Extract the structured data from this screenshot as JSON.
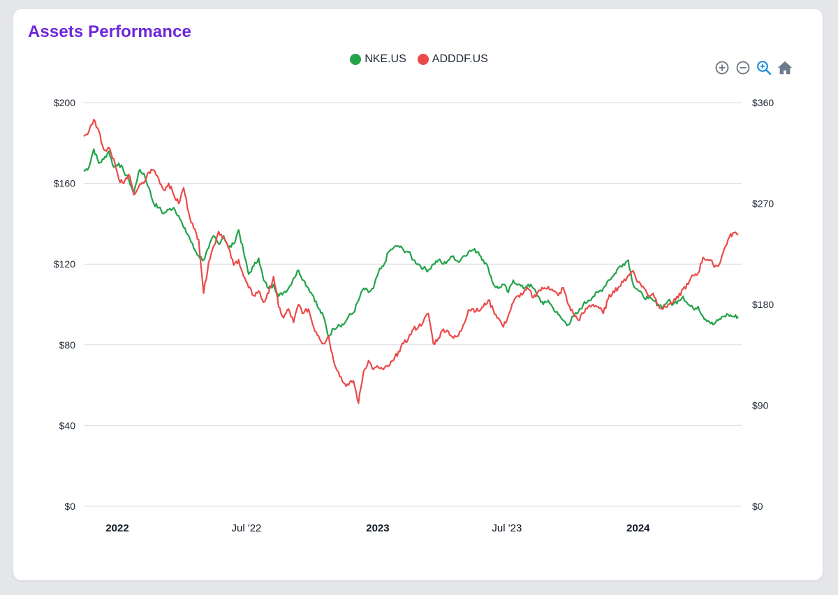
{
  "header": {
    "title": "Assets Performance"
  },
  "toolbar": [
    {
      "name": "zoom-in-icon",
      "label": "Zoom in"
    },
    {
      "name": "zoom-out-icon",
      "label": "Zoom out"
    },
    {
      "name": "magnifier-icon",
      "label": "Selection zoom"
    },
    {
      "name": "home-icon",
      "label": "Reset zoom"
    }
  ],
  "colors": {
    "nke": "#22a34a",
    "adddf": "#ea4a4a",
    "title": "#6d28d9",
    "grid": "#d9dbe0"
  },
  "chart_data": {
    "type": "line",
    "title": "Assets Performance",
    "legend_position": "top-center",
    "grid": true,
    "x_range": [
      "2021-11-15",
      "2024-05-25"
    ],
    "x_ticks": [
      {
        "date": "2022-01-01",
        "label": "2022",
        "bold": true
      },
      {
        "date": "2022-07-01",
        "label": "Jul '22",
        "bold": false
      },
      {
        "date": "2023-01-01",
        "label": "2023",
        "bold": true
      },
      {
        "date": "2023-07-01",
        "label": "Jul '23",
        "bold": false
      },
      {
        "date": "2024-01-01",
        "label": "2024",
        "bold": true
      }
    ],
    "y_left": {
      "min": 0,
      "max": 200,
      "ticks": [
        0,
        40,
        80,
        120,
        160,
        200
      ],
      "labels": [
        "$0",
        "$40",
        "$80",
        "$120",
        "$160",
        "$200"
      ]
    },
    "y_right": {
      "min": 0,
      "max": 360,
      "ticks": [
        0,
        90,
        180,
        270,
        360
      ],
      "labels": [
        "$0",
        "$90",
        "$180",
        "$270",
        "$360"
      ]
    },
    "series": [
      {
        "name": "NKE.US",
        "axis": "left",
        "color": "#22a34a",
        "points": [
          [
            "2021-11-15",
            166
          ],
          [
            "2021-11-22",
            168
          ],
          [
            "2021-11-29",
            177
          ],
          [
            "2021-12-06",
            170
          ],
          [
            "2021-12-13",
            172
          ],
          [
            "2021-12-20",
            176
          ],
          [
            "2021-12-27",
            168
          ],
          [
            "2022-01-03",
            170
          ],
          [
            "2022-01-10",
            166
          ],
          [
            "2022-01-17",
            162
          ],
          [
            "2022-01-24",
            155
          ],
          [
            "2022-01-31",
            166
          ],
          [
            "2022-02-07",
            165
          ],
          [
            "2022-02-14",
            158
          ],
          [
            "2022-02-21",
            150
          ],
          [
            "2022-02-28",
            148
          ],
          [
            "2022-03-07",
            145
          ],
          [
            "2022-03-14",
            147
          ],
          [
            "2022-03-21",
            148
          ],
          [
            "2022-03-28",
            144
          ],
          [
            "2022-04-04",
            138
          ],
          [
            "2022-04-11",
            134
          ],
          [
            "2022-04-18",
            128
          ],
          [
            "2022-04-25",
            124
          ],
          [
            "2022-05-02",
            122
          ],
          [
            "2022-05-09",
            128
          ],
          [
            "2022-05-16",
            134
          ],
          [
            "2022-05-23",
            130
          ],
          [
            "2022-05-30",
            134
          ],
          [
            "2022-06-06",
            128
          ],
          [
            "2022-06-13",
            130
          ],
          [
            "2022-06-20",
            137
          ],
          [
            "2022-06-27",
            126
          ],
          [
            "2022-07-04",
            115
          ],
          [
            "2022-07-11",
            119
          ],
          [
            "2022-07-18",
            123
          ],
          [
            "2022-07-25",
            112
          ],
          [
            "2022-08-01",
            108
          ],
          [
            "2022-08-08",
            110
          ],
          [
            "2022-08-15",
            104
          ],
          [
            "2022-08-22",
            106
          ],
          [
            "2022-08-29",
            108
          ],
          [
            "2022-09-05",
            113
          ],
          [
            "2022-09-12",
            117
          ],
          [
            "2022-09-19",
            112
          ],
          [
            "2022-09-26",
            108
          ],
          [
            "2022-10-03",
            104
          ],
          [
            "2022-10-10",
            98
          ],
          [
            "2022-10-17",
            94
          ],
          [
            "2022-10-24",
            84
          ],
          [
            "2022-10-31",
            88
          ],
          [
            "2022-11-07",
            90
          ],
          [
            "2022-11-14",
            90
          ],
          [
            "2022-11-21",
            94
          ],
          [
            "2022-11-28",
            96
          ],
          [
            "2022-12-05",
            102
          ],
          [
            "2022-12-12",
            108
          ],
          [
            "2022-12-19",
            106
          ],
          [
            "2022-12-26",
            108
          ],
          [
            "2023-01-02",
            116
          ],
          [
            "2023-01-09",
            119
          ],
          [
            "2023-01-16",
            126
          ],
          [
            "2023-01-23",
            128
          ],
          [
            "2023-01-30",
            129
          ],
          [
            "2023-02-06",
            127
          ],
          [
            "2023-02-13",
            126
          ],
          [
            "2023-02-20",
            122
          ],
          [
            "2023-02-27",
            120
          ],
          [
            "2023-03-06",
            118
          ],
          [
            "2023-03-13",
            117
          ],
          [
            "2023-03-20",
            120
          ],
          [
            "2023-03-27",
            122
          ],
          [
            "2023-04-03",
            120
          ],
          [
            "2023-04-10",
            122
          ],
          [
            "2023-04-17",
            124
          ],
          [
            "2023-04-24",
            121
          ],
          [
            "2023-05-01",
            124
          ],
          [
            "2023-05-08",
            126
          ],
          [
            "2023-05-15",
            127
          ],
          [
            "2023-05-22",
            126
          ],
          [
            "2023-05-29",
            122
          ],
          [
            "2023-06-05",
            118
          ],
          [
            "2023-06-12",
            110
          ],
          [
            "2023-06-19",
            108
          ],
          [
            "2023-06-26",
            110
          ],
          [
            "2023-07-03",
            106
          ],
          [
            "2023-07-10",
            112
          ],
          [
            "2023-07-17",
            110
          ],
          [
            "2023-07-24",
            108
          ],
          [
            "2023-07-31",
            110
          ],
          [
            "2023-08-07",
            108
          ],
          [
            "2023-08-14",
            104
          ],
          [
            "2023-08-21",
            100
          ],
          [
            "2023-08-28",
            102
          ],
          [
            "2023-09-04",
            98
          ],
          [
            "2023-09-11",
            95
          ],
          [
            "2023-09-18",
            92
          ],
          [
            "2023-09-25",
            90
          ],
          [
            "2023-10-02",
            94
          ],
          [
            "2023-10-09",
            96
          ],
          [
            "2023-10-16",
            100
          ],
          [
            "2023-10-23",
            102
          ],
          [
            "2023-10-30",
            104
          ],
          [
            "2023-11-06",
            106
          ],
          [
            "2023-11-13",
            108
          ],
          [
            "2023-11-20",
            112
          ],
          [
            "2023-11-27",
            114
          ],
          [
            "2023-12-04",
            118
          ],
          [
            "2023-12-11",
            120
          ],
          [
            "2023-12-18",
            122
          ],
          [
            "2023-12-25",
            110
          ],
          [
            "2024-01-01",
            107
          ],
          [
            "2024-01-08",
            104
          ],
          [
            "2024-01-15",
            103
          ],
          [
            "2024-01-22",
            102
          ],
          [
            "2024-01-29",
            100
          ],
          [
            "2024-02-05",
            99
          ],
          [
            "2024-02-12",
            102
          ],
          [
            "2024-02-19",
            100
          ],
          [
            "2024-02-26",
            102
          ],
          [
            "2024-03-04",
            104
          ],
          [
            "2024-03-11",
            100
          ],
          [
            "2024-03-18",
            98
          ],
          [
            "2024-03-25",
            99
          ],
          [
            "2024-04-01",
            94
          ],
          [
            "2024-04-08",
            92
          ],
          [
            "2024-04-15",
            90
          ],
          [
            "2024-04-22",
            92
          ],
          [
            "2024-04-29",
            94
          ],
          [
            "2024-05-06",
            95
          ],
          [
            "2024-05-13",
            94
          ],
          [
            "2024-05-20",
            94
          ]
        ]
      },
      {
        "name": "ADDDF.US",
        "axis": "right",
        "color": "#ea4a4a",
        "points": [
          [
            "2021-11-15",
            330
          ],
          [
            "2021-11-22",
            334
          ],
          [
            "2021-11-29",
            345
          ],
          [
            "2021-12-06",
            335
          ],
          [
            "2021-12-13",
            318
          ],
          [
            "2021-12-20",
            320
          ],
          [
            "2021-12-27",
            310
          ],
          [
            "2022-01-03",
            292
          ],
          [
            "2022-01-10",
            288
          ],
          [
            "2022-01-17",
            296
          ],
          [
            "2022-01-24",
            278
          ],
          [
            "2022-01-31",
            285
          ],
          [
            "2022-02-07",
            288
          ],
          [
            "2022-02-14",
            298
          ],
          [
            "2022-02-21",
            300
          ],
          [
            "2022-02-28",
            292
          ],
          [
            "2022-03-07",
            282
          ],
          [
            "2022-03-14",
            288
          ],
          [
            "2022-03-21",
            278
          ],
          [
            "2022-03-28",
            270
          ],
          [
            "2022-04-04",
            284
          ],
          [
            "2022-04-11",
            262
          ],
          [
            "2022-04-18",
            248
          ],
          [
            "2022-04-25",
            238
          ],
          [
            "2022-05-02",
            190
          ],
          [
            "2022-05-09",
            218
          ],
          [
            "2022-05-16",
            232
          ],
          [
            "2022-05-23",
            245
          ],
          [
            "2022-05-30",
            240
          ],
          [
            "2022-06-06",
            230
          ],
          [
            "2022-06-13",
            215
          ],
          [
            "2022-06-20",
            220
          ],
          [
            "2022-06-27",
            205
          ],
          [
            "2022-07-04",
            195
          ],
          [
            "2022-07-11",
            188
          ],
          [
            "2022-07-18",
            192
          ],
          [
            "2022-07-25",
            182
          ],
          [
            "2022-08-01",
            190
          ],
          [
            "2022-08-08",
            205
          ],
          [
            "2022-08-15",
            178
          ],
          [
            "2022-08-22",
            168
          ],
          [
            "2022-08-29",
            176
          ],
          [
            "2022-09-05",
            164
          ],
          [
            "2022-09-12",
            180
          ],
          [
            "2022-09-19",
            172
          ],
          [
            "2022-09-26",
            176
          ],
          [
            "2022-10-03",
            160
          ],
          [
            "2022-10-10",
            152
          ],
          [
            "2022-10-17",
            145
          ],
          [
            "2022-10-24",
            152
          ],
          [
            "2022-10-31",
            130
          ],
          [
            "2022-11-07",
            120
          ],
          [
            "2022-11-14",
            110
          ],
          [
            "2022-11-21",
            108
          ],
          [
            "2022-11-28",
            112
          ],
          [
            "2022-12-05",
            92
          ],
          [
            "2022-12-12",
            120
          ],
          [
            "2022-12-19",
            130
          ],
          [
            "2022-12-26",
            122
          ],
          [
            "2023-01-02",
            124
          ],
          [
            "2023-01-09",
            122
          ],
          [
            "2023-01-16",
            125
          ],
          [
            "2023-01-23",
            130
          ],
          [
            "2023-01-30",
            138
          ],
          [
            "2023-02-06",
            145
          ],
          [
            "2023-02-13",
            150
          ],
          [
            "2023-02-20",
            158
          ],
          [
            "2023-02-27",
            160
          ],
          [
            "2023-03-06",
            165
          ],
          [
            "2023-03-13",
            172
          ],
          [
            "2023-03-20",
            145
          ],
          [
            "2023-03-27",
            150
          ],
          [
            "2023-04-03",
            158
          ],
          [
            "2023-04-10",
            156
          ],
          [
            "2023-04-17",
            150
          ],
          [
            "2023-04-24",
            152
          ],
          [
            "2023-05-01",
            162
          ],
          [
            "2023-05-08",
            175
          ],
          [
            "2023-05-15",
            176
          ],
          [
            "2023-05-22",
            174
          ],
          [
            "2023-05-29",
            178
          ],
          [
            "2023-06-05",
            184
          ],
          [
            "2023-06-12",
            175
          ],
          [
            "2023-06-19",
            168
          ],
          [
            "2023-06-26",
            160
          ],
          [
            "2023-07-03",
            170
          ],
          [
            "2023-07-10",
            182
          ],
          [
            "2023-07-17",
            188
          ],
          [
            "2023-07-24",
            190
          ],
          [
            "2023-07-31",
            194
          ],
          [
            "2023-08-07",
            186
          ],
          [
            "2023-08-14",
            192
          ],
          [
            "2023-08-21",
            194
          ],
          [
            "2023-08-28",
            196
          ],
          [
            "2023-09-04",
            192
          ],
          [
            "2023-09-11",
            188
          ],
          [
            "2023-09-18",
            195
          ],
          [
            "2023-09-25",
            180
          ],
          [
            "2023-10-02",
            172
          ],
          [
            "2023-10-09",
            166
          ],
          [
            "2023-10-16",
            172
          ],
          [
            "2023-10-23",
            178
          ],
          [
            "2023-10-30",
            180
          ],
          [
            "2023-11-06",
            178
          ],
          [
            "2023-11-13",
            172
          ],
          [
            "2023-11-20",
            185
          ],
          [
            "2023-11-27",
            192
          ],
          [
            "2023-12-04",
            195
          ],
          [
            "2023-12-11",
            200
          ],
          [
            "2023-12-18",
            206
          ],
          [
            "2023-12-25",
            210
          ],
          [
            "2024-01-01",
            200
          ],
          [
            "2024-01-08",
            196
          ],
          [
            "2024-01-15",
            188
          ],
          [
            "2024-01-22",
            190
          ],
          [
            "2024-01-29",
            180
          ],
          [
            "2024-02-05",
            176
          ],
          [
            "2024-02-12",
            180
          ],
          [
            "2024-02-19",
            182
          ],
          [
            "2024-02-26",
            186
          ],
          [
            "2024-03-04",
            194
          ],
          [
            "2024-03-11",
            198
          ],
          [
            "2024-03-18",
            206
          ],
          [
            "2024-03-25",
            208
          ],
          [
            "2024-04-01",
            222
          ],
          [
            "2024-04-08",
            220
          ],
          [
            "2024-04-15",
            216
          ],
          [
            "2024-04-22",
            214
          ],
          [
            "2024-04-29",
            226
          ],
          [
            "2024-05-06",
            238
          ],
          [
            "2024-05-13",
            244
          ],
          [
            "2024-05-20",
            242
          ]
        ]
      }
    ]
  }
}
